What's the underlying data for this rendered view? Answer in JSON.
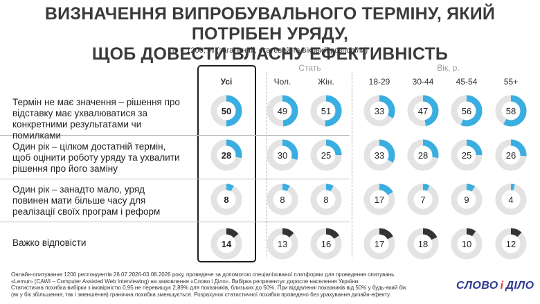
{
  "title_line1": "ВИЗНАЧЕННЯ ВИПРОБУВАЛЬНОГО ТЕРМІНУ, ЯКИЙ ПОТРІБЕН УРЯДУ,",
  "title_line2": "ЩОБ ДОВЕСТИ ВЛАСНУ ЕФЕКТИВНІСТЬ",
  "subtitle": "N = 1200, % (загальний, статевий та віковий розподіли)",
  "groups": {
    "gender": "Стать",
    "age": "Вік, р."
  },
  "colors": {
    "accent": "#3aaee0",
    "dark": "#333333",
    "track": "#e3e3e3",
    "highlight_border": "#1e1e1e"
  },
  "chart_data": {
    "type": "donut-grid",
    "title": "ВИЗНАЧЕННЯ ВИПРОБУВАЛЬНОГО ТЕРМІНУ, ЯКИЙ ПОТРІБЕН УРЯДУ, ЩОБ ДОВЕСТИ ВЛАСНУ ЕФЕКТИВНІСТЬ",
    "columns": [
      "Усі",
      "Чол.",
      "Жін.",
      "18-29",
      "30-44",
      "45-54",
      "55+"
    ],
    "rows": [
      {
        "label": "Термін не має значення – рішення про відставку має ухвалюватися за конкретними результатами чи помилками",
        "values": [
          50,
          49,
          51,
          33,
          47,
          56,
          58
        ],
        "color": "accent"
      },
      {
        "label": "Один рік – цілком достатній термін, щоб оцінити роботу уряду та ухвалити рішення про його заміну",
        "values": [
          28,
          30,
          25,
          33,
          28,
          25,
          26
        ],
        "color": "accent"
      },
      {
        "label": "Один рік – занадто мало, уряд повинен мати більше часу для реалізації своїх програм і реформ",
        "values": [
          8,
          8,
          8,
          17,
          7,
          9,
          4
        ],
        "color": "accent"
      },
      {
        "label": "Важко відповісти",
        "values": [
          14,
          13,
          16,
          17,
          18,
          10,
          12
        ],
        "color": "dark"
      }
    ],
    "max": 100
  },
  "footer": {
    "line1": "Онлайн-опитування 1200 респондентів 26.07.2026-03.08.2026 року, проведене за допомогою спеціалізованої платформи для проведення опитувань",
    "line2": "«Lemur» (CAWI – Computer Assisted Web Interviewing) на замовлення «Слово і Діло». Вибірка репрезентує доросле населення України.",
    "line3": "Статистична похибка вибірки з імовірністю 0,95 не перевищує 2,89% для показників, близьких до 50%. При віддаленні показників від 50% у будь-який бік",
    "line4": "(як у бік збільшення, так і зменшення) гранична похибка зменшується. Розрахунок статистичної похибки проведено без урахування дизайн-ефекту."
  },
  "logo": {
    "part1": "СЛОВО",
    "amp": "і",
    "part2": "ДІЛО"
  }
}
